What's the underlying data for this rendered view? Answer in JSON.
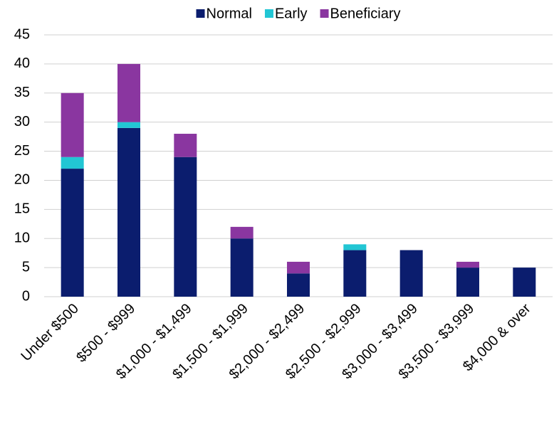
{
  "chart_data": {
    "type": "bar",
    "stacked": true,
    "categories": [
      "Under $500",
      "$500 - $999",
      "$1,000 - $1,499",
      "$1,500 - $1,999",
      "$2,000 - $2,499",
      "$2,500 - $2,999",
      "$3,000 - $3,499",
      "$3,500 - $3,999",
      "$4,000 & over"
    ],
    "series": [
      {
        "name": "Normal",
        "color": "#0b1d6e",
        "values": [
          22,
          29,
          24,
          10,
          4,
          8,
          8,
          5,
          5
        ]
      },
      {
        "name": "Early",
        "color": "#22c6d4",
        "values": [
          2,
          1,
          0,
          0,
          0,
          1,
          0,
          0,
          0
        ]
      },
      {
        "name": "Beneficiary",
        "color": "#8a36a0",
        "values": [
          11,
          10,
          4,
          2,
          2,
          0,
          0,
          1,
          0
        ]
      }
    ],
    "ylim": [
      0,
      45
    ],
    "yticks": [
      0,
      5,
      10,
      15,
      20,
      25,
      30,
      35,
      40,
      45
    ],
    "grid": true,
    "legend": "top"
  }
}
